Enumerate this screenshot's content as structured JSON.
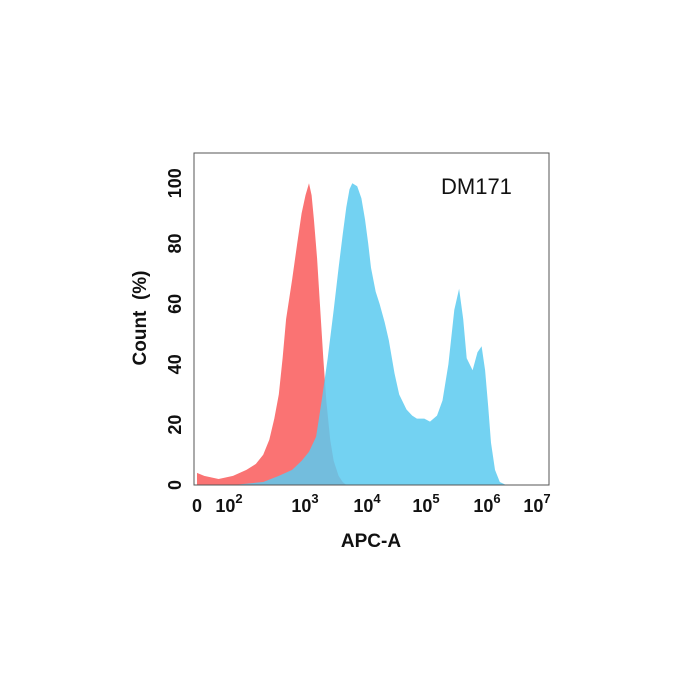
{
  "chart_data": {
    "type": "area",
    "title": "",
    "annotation": "DM171",
    "xlabel": "APC-A",
    "ylabel": "Count  (%)",
    "x_scale": "log",
    "xlim": [
      0,
      10000000
    ],
    "ylim": [
      0,
      110
    ],
    "x_ticks": [
      {
        "value": 0,
        "base": "0",
        "exp": ""
      },
      {
        "value": 100,
        "base": "10",
        "exp": "2"
      },
      {
        "value": 1000,
        "base": "10",
        "exp": "3"
      },
      {
        "value": 10000,
        "base": "10",
        "exp": "4"
      },
      {
        "value": 100000,
        "base": "10",
        "exp": "5"
      },
      {
        "value": 1000000,
        "base": "10",
        "exp": "6"
      },
      {
        "value": 10000000,
        "base": "10",
        "exp": "7"
      }
    ],
    "y_ticks": [
      0,
      20,
      40,
      60,
      80,
      100
    ],
    "grid": false,
    "series": [
      {
        "color": "#fa6b6b",
        "points": [
          [
            0,
            4
          ],
          [
            20,
            3
          ],
          [
            60,
            2
          ],
          [
            100,
            3
          ],
          [
            150,
            5
          ],
          [
            200,
            7
          ],
          [
            250,
            10
          ],
          [
            300,
            15
          ],
          [
            350,
            22
          ],
          [
            400,
            30
          ],
          [
            450,
            42
          ],
          [
            500,
            55
          ],
          [
            600,
            68
          ],
          [
            700,
            80
          ],
          [
            800,
            90
          ],
          [
            900,
            96
          ],
          [
            1000,
            100
          ],
          [
            1100,
            96
          ],
          [
            1200,
            88
          ],
          [
            1350,
            75
          ],
          [
            1500,
            60
          ],
          [
            1700,
            42
          ],
          [
            1900,
            28
          ],
          [
            2200,
            15
          ],
          [
            2500,
            8
          ],
          [
            3000,
            3
          ],
          [
            3500,
            1
          ],
          [
            4000,
            0
          ]
        ]
      },
      {
        "color": "#5bcaf0",
        "points": [
          [
            0,
            0
          ],
          [
            100,
            0
          ],
          [
            250,
            1
          ],
          [
            400,
            3
          ],
          [
            600,
            5
          ],
          [
            800,
            8
          ],
          [
            1000,
            11
          ],
          [
            1300,
            16
          ],
          [
            1600,
            28
          ],
          [
            2000,
            42
          ],
          [
            2500,
            58
          ],
          [
            3000,
            72
          ],
          [
            3500,
            83
          ],
          [
            4000,
            92
          ],
          [
            4500,
            98
          ],
          [
            5000,
            100
          ],
          [
            6000,
            99
          ],
          [
            7000,
            95
          ],
          [
            8000,
            88
          ],
          [
            9000,
            80
          ],
          [
            10000,
            72
          ],
          [
            12000,
            64
          ],
          [
            14000,
            60
          ],
          [
            17000,
            54
          ],
          [
            20000,
            48
          ],
          [
            25000,
            37
          ],
          [
            30000,
            30
          ],
          [
            40000,
            25
          ],
          [
            50000,
            23
          ],
          [
            60000,
            22
          ],
          [
            80000,
            22
          ],
          [
            100000,
            21
          ],
          [
            130000,
            23
          ],
          [
            160000,
            28
          ],
          [
            200000,
            40
          ],
          [
            250000,
            58
          ],
          [
            300000,
            65
          ],
          [
            350000,
            55
          ],
          [
            400000,
            42
          ],
          [
            500000,
            38
          ],
          [
            600000,
            44
          ],
          [
            700000,
            46
          ],
          [
            800000,
            38
          ],
          [
            900000,
            26
          ],
          [
            1000000,
            14
          ],
          [
            1200000,
            5
          ],
          [
            1500000,
            1
          ],
          [
            2000000,
            0
          ]
        ]
      }
    ]
  }
}
